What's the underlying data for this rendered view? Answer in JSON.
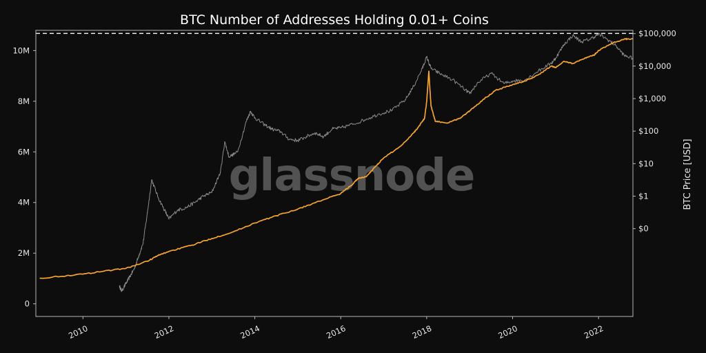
{
  "title": "BTC Number of Addresses Holding 0.01+ Coins",
  "watermark": "glassnode",
  "colors": {
    "background": "#0d0d0d",
    "axes_border": "#b8b8b8",
    "addresses_line": "#8c8c8c",
    "price_line": "#f7a431",
    "ath_line": "#ffffff"
  },
  "chart_data": {
    "type": "line",
    "title": "BTC Number of Addresses Holding 0.01+ Coins",
    "xlabel": "",
    "ylabel_left": "",
    "ylabel_right": "BTC Price [USD]",
    "grid": false,
    "xlim": [
      2009.0,
      2022.8
    ],
    "ylim_left": [
      -500000,
      10800000
    ],
    "ylim_right_log10": [
      -3.7,
      5.1
    ],
    "x_ticks": [
      2010,
      2012,
      2014,
      2016,
      2018,
      2020,
      2022
    ],
    "y_left_ticks": [
      {
        "value": 0,
        "label": "0"
      },
      {
        "value": 2000000,
        "label": "2M"
      },
      {
        "value": 4000000,
        "label": "4M"
      },
      {
        "value": 6000000,
        "label": "6M"
      },
      {
        "value": 8000000,
        "label": "8M"
      },
      {
        "value": 10000000,
        "label": "10M"
      }
    ],
    "y_right_ticks": [
      {
        "value": 100000,
        "label": "$100,000"
      },
      {
        "value": 10000,
        "label": "$10,000"
      },
      {
        "value": 1000,
        "label": "$1,000"
      },
      {
        "value": 100,
        "label": "$100"
      },
      {
        "value": 10,
        "label": "$10"
      },
      {
        "value": 1,
        "label": "$1"
      },
      {
        "value": 0.1,
        "label": "$0"
      }
    ],
    "reference_line": {
      "axis": "left",
      "value": 10680000,
      "style": "dashed"
    },
    "series": [
      {
        "axis": "left",
        "color": "#8c8c8c",
        "x": [
          2010.85,
          2010.9,
          2011.0,
          2011.1,
          2011.2,
          2011.3,
          2011.4,
          2011.5,
          2011.6,
          2011.75,
          2011.9,
          2012.0,
          2012.2,
          2012.4,
          2012.6,
          2012.8,
          2013.0,
          2013.2,
          2013.3,
          2013.4,
          2013.6,
          2013.8,
          2013.9,
          2014.0,
          2014.2,
          2014.4,
          2014.6,
          2014.8,
          2015.0,
          2015.2,
          2015.4,
          2015.6,
          2015.8,
          2016.0,
          2016.3,
          2016.6,
          2016.9,
          2017.2,
          2017.5,
          2017.7,
          2017.9,
          2018.0,
          2018.1,
          2018.3,
          2018.6,
          2018.9,
          2019.0,
          2019.2,
          2019.5,
          2019.8,
          2020.0,
          2020.3,
          2020.6,
          2020.9,
          2021.0,
          2021.2,
          2021.4,
          2021.6,
          2021.8,
          2022.0,
          2022.2,
          2022.4,
          2022.6,
          2022.8
        ],
        "values": [
          700000,
          500000,
          800000,
          1100000,
          1400000,
          1900000,
          2400000,
          3600000,
          4900000,
          4200000,
          3700000,
          3350000,
          3700000,
          3800000,
          4000000,
          4250000,
          4400000,
          5200000,
          6400000,
          5800000,
          6000000,
          7200000,
          7600000,
          7350000,
          7100000,
          6900000,
          6800000,
          6500000,
          6450000,
          6600000,
          6750000,
          6600000,
          6900000,
          6950000,
          7100000,
          7300000,
          7500000,
          7650000,
          8050000,
          8600000,
          9300000,
          9750000,
          9300000,
          9100000,
          8850000,
          8450000,
          8300000,
          8750000,
          9100000,
          8700000,
          8800000,
          8850000,
          9200000,
          9500000,
          9700000,
          10250000,
          10600000,
          10350000,
          10450000,
          10650000,
          10450000,
          10200000,
          9800000,
          9700000
        ]
      },
      {
        "axis": "right",
        "color": "#f7a431",
        "x": [
          2009.0,
          2010.0,
          2010.5,
          2011.0,
          2011.5,
          2011.75,
          2012.0,
          2012.5,
          2013.0,
          2013.5,
          2014.0,
          2014.5,
          2015.0,
          2015.5,
          2016.0,
          2016.3,
          2016.4,
          2016.6,
          2016.8,
          2017.0,
          2017.4,
          2017.7,
          2017.8,
          2017.95,
          2018.0,
          2018.05,
          2018.1,
          2018.2,
          2018.5,
          2018.8,
          2019.0,
          2019.3,
          2019.6,
          2020.0,
          2020.3,
          2020.6,
          2020.9,
          2021.0,
          2021.2,
          2021.4,
          2021.7,
          2021.9,
          2022.0,
          2022.3,
          2022.6,
          2022.8
        ],
        "values": [
          0.003,
          0.004,
          0.005,
          0.006,
          0.01,
          0.015,
          0.02,
          0.03,
          0.05,
          0.08,
          0.15,
          0.25,
          0.4,
          0.7,
          1.2,
          2.5,
          3.5,
          4,
          8,
          15,
          35,
          90,
          130,
          250,
          800,
          7000,
          600,
          200,
          180,
          260,
          420,
          900,
          1800,
          2700,
          3500,
          5400,
          10000,
          9000,
          14000,
          12000,
          18000,
          22000,
          30000,
          50000,
          68000,
          69000
        ]
      }
    ]
  }
}
